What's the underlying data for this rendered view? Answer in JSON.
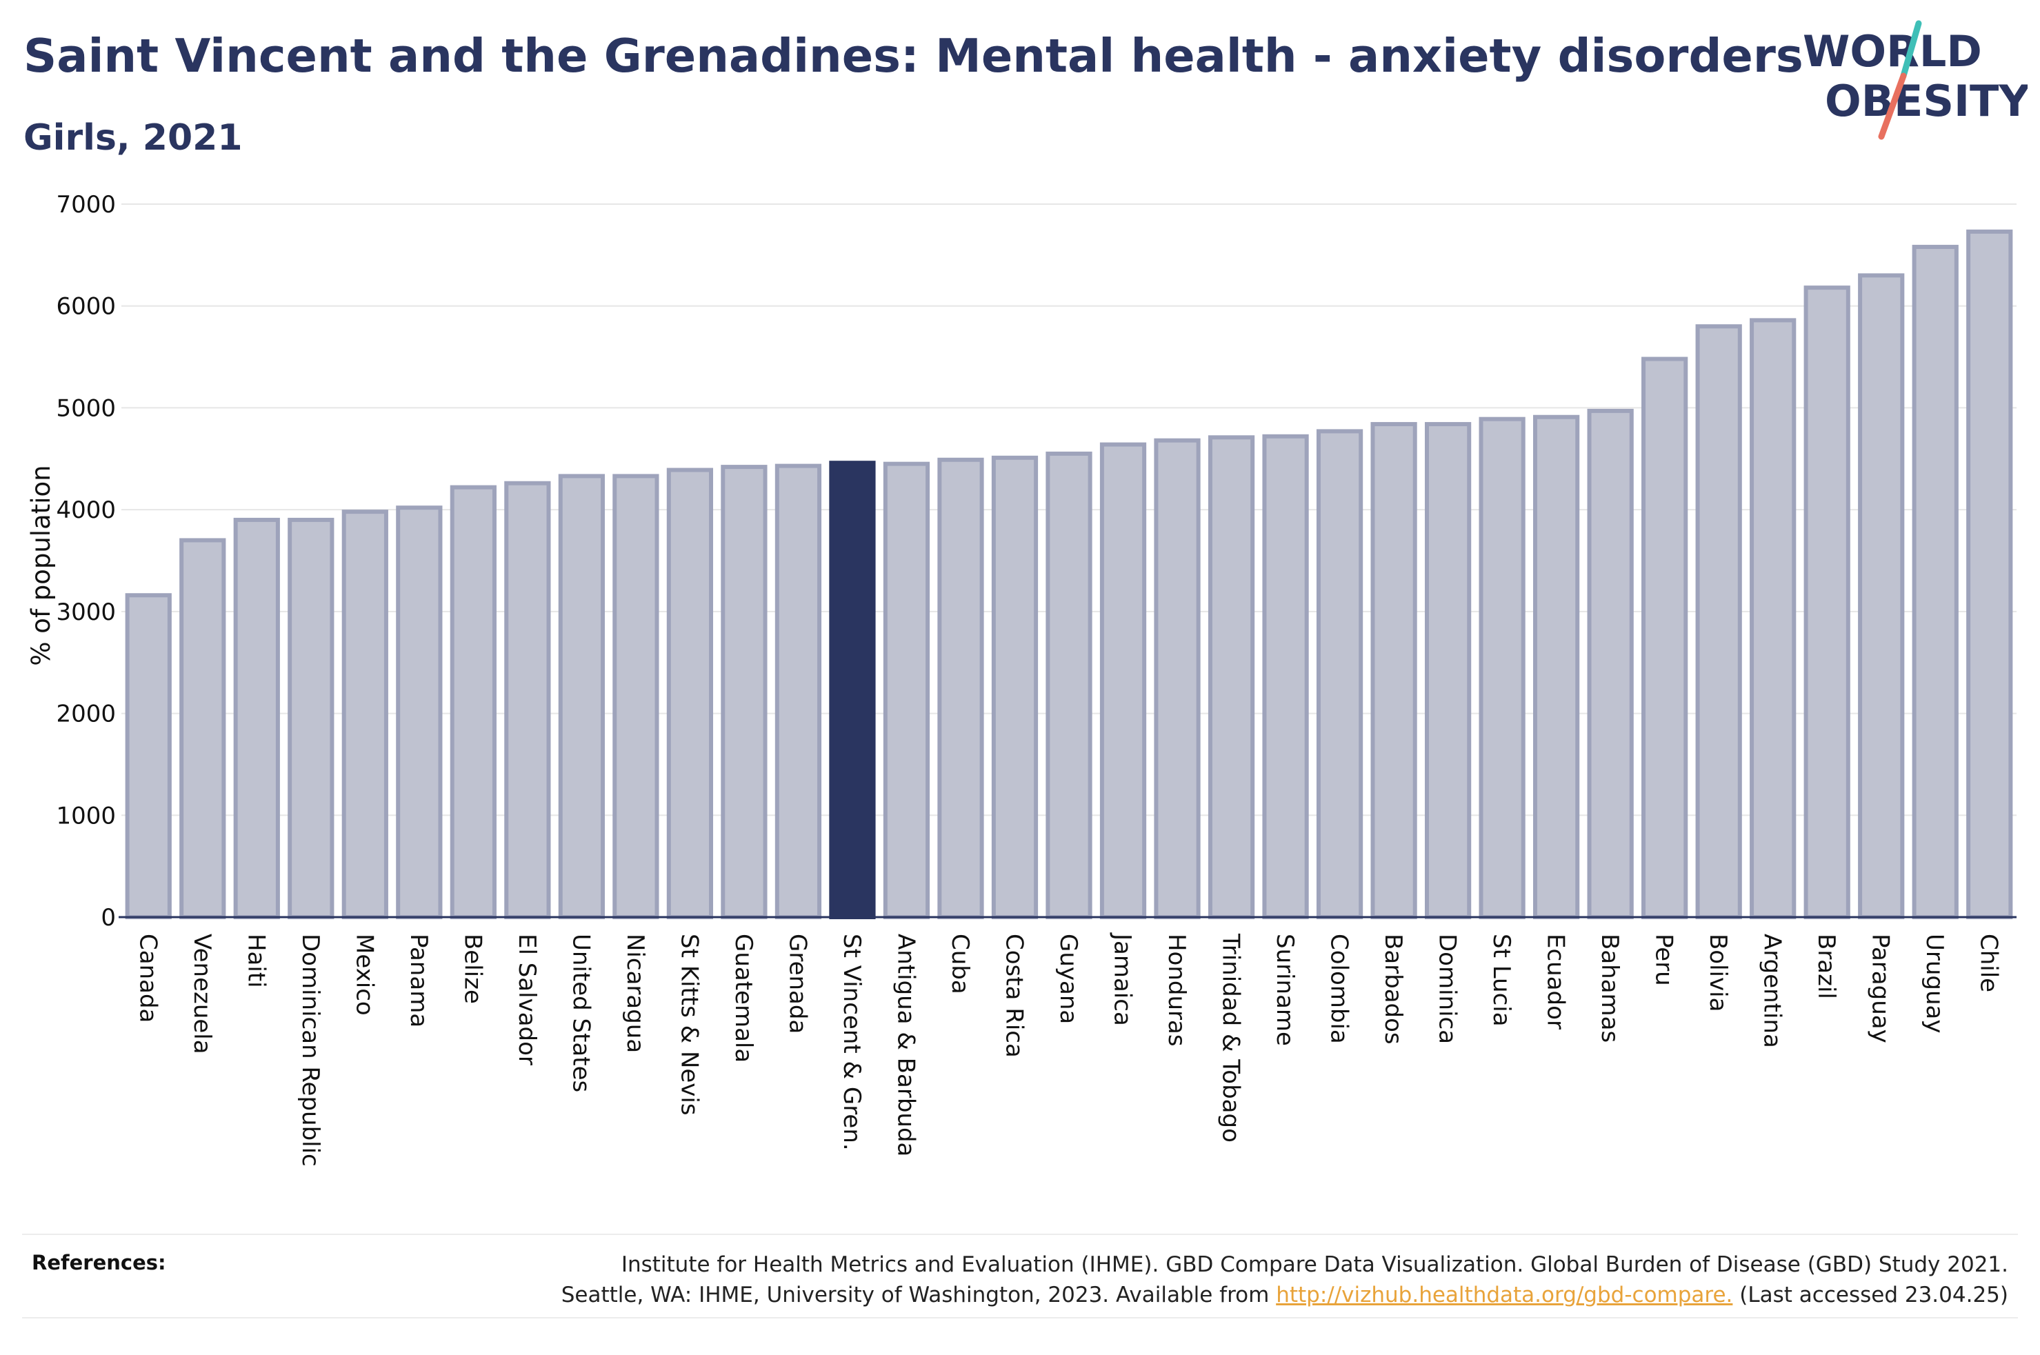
{
  "header": {
    "title": "Saint Vincent and the Grenadines: Mental health - anxiety disorders",
    "subtitle": "Girls, 2021"
  },
  "logo": {
    "line1": "WORLD",
    "line2": "OBESITY",
    "accent_teal": "#3fbfb7",
    "accent_coral": "#e8705f"
  },
  "chart_data": {
    "type": "bar",
    "ylabel": "% of population",
    "ylim": [
      0,
      7000
    ],
    "yticks": [
      0,
      1000,
      2000,
      3000,
      4000,
      5000,
      6000,
      7000
    ],
    "grid": true,
    "highlight": "St Vincent & Gren.",
    "colors": {
      "bar": "#bfc2d0",
      "bar_edge": "#9ea3bb",
      "highlight": "#2a3560"
    },
    "categories": [
      "Canada",
      "Venezuela",
      "Haiti",
      "Dominican Republic",
      "Mexico",
      "Panama",
      "Belize",
      "El Salvador",
      "United States",
      "Nicaragua",
      "St Kitts & Nevis",
      "Guatemala",
      "Grenada",
      "St Vincent & Gren.",
      "Antigua & Barbuda",
      "Cuba",
      "Costa Rica",
      "Guyana",
      "Jamaica",
      "Honduras",
      "Trinidad & Tobago",
      "Suriname",
      "Colombia",
      "Barbados",
      "Dominica",
      "St Lucia",
      "Ecuador",
      "Bahamas",
      "Peru",
      "Bolivia",
      "Argentina",
      "Brazil",
      "Paraguay",
      "Uruguay",
      "Chile"
    ],
    "values": [
      3160,
      3700,
      3900,
      3900,
      3980,
      4020,
      4220,
      4260,
      4330,
      4330,
      4390,
      4420,
      4430,
      4460,
      4450,
      4490,
      4510,
      4550,
      4640,
      4680,
      4710,
      4720,
      4770,
      4840,
      4840,
      4890,
      4910,
      4970,
      5480,
      5800,
      5860,
      6180,
      6300,
      6580,
      6730
    ]
  },
  "references": {
    "label": "References:",
    "line1": "Institute for Health Metrics and Evaluation (IHME). GBD Compare Data Visualization. Global Burden of Disease (GBD) Study 2021.",
    "line2_prefix": "Seattle, WA: IHME, University of Washington, 2023. Available from ",
    "link": "http://vizhub.healthdata.org/gbd-compare.",
    "line2_suffix": " (Last accessed 23.04.25)"
  }
}
